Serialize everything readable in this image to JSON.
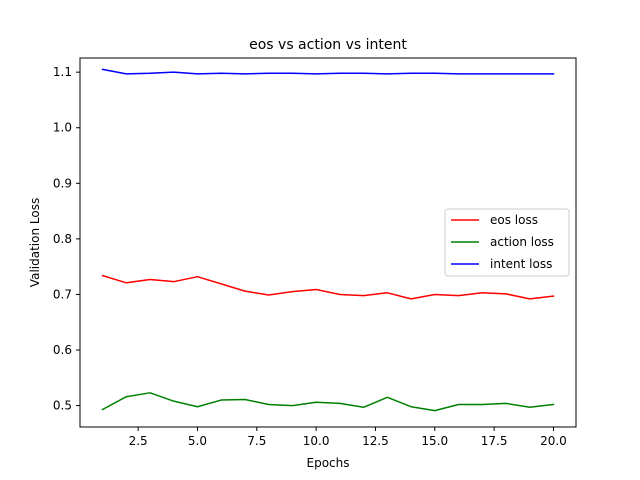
{
  "chart_data": {
    "type": "line",
    "title": "eos vs action vs intent",
    "xlabel": "Epochs",
    "ylabel": "Validation Loss",
    "x": [
      1,
      2,
      3,
      4,
      5,
      6,
      7,
      8,
      9,
      10,
      11,
      12,
      13,
      14,
      15,
      16,
      17,
      18,
      19,
      20
    ],
    "xlim": [
      0.05,
      20.95
    ],
    "ylim": [
      0.4615,
      1.1255
    ],
    "xticks": [
      2.5,
      5.0,
      7.5,
      10.0,
      12.5,
      15.0,
      17.5,
      20.0
    ],
    "xtick_labels": [
      "2.5",
      "5.0",
      "7.5",
      "10.0",
      "12.5",
      "15.0",
      "17.5",
      "20.0"
    ],
    "yticks": [
      0.5,
      0.6,
      0.7,
      0.8,
      0.9,
      1.0,
      1.1
    ],
    "ytick_labels": [
      "0.5",
      "0.6",
      "0.7",
      "0.8",
      "0.9",
      "1.0",
      "1.1"
    ],
    "grid": false,
    "legend_position": "center-right",
    "series": [
      {
        "name": "eos loss",
        "color": "#ff0000",
        "values": [
          0.734,
          0.721,
          0.727,
          0.723,
          0.732,
          0.719,
          0.706,
          0.699,
          0.705,
          0.709,
          0.7,
          0.698,
          0.703,
          0.692,
          0.7,
          0.698,
          0.703,
          0.701,
          0.692,
          0.697
        ]
      },
      {
        "name": "action loss",
        "color": "#008000",
        "values": [
          0.493,
          0.516,
          0.523,
          0.508,
          0.498,
          0.51,
          0.511,
          0.502,
          0.5,
          0.506,
          0.504,
          0.497,
          0.515,
          0.498,
          0.491,
          0.502,
          0.502,
          0.504,
          0.497,
          0.502
        ]
      },
      {
        "name": "intent loss",
        "color": "#0000ff",
        "values": [
          1.105,
          1.097,
          1.098,
          1.1,
          1.097,
          1.098,
          1.097,
          1.098,
          1.098,
          1.097,
          1.098,
          1.098,
          1.097,
          1.098,
          1.098,
          1.097,
          1.097,
          1.097,
          1.097,
          1.097
        ]
      }
    ]
  }
}
